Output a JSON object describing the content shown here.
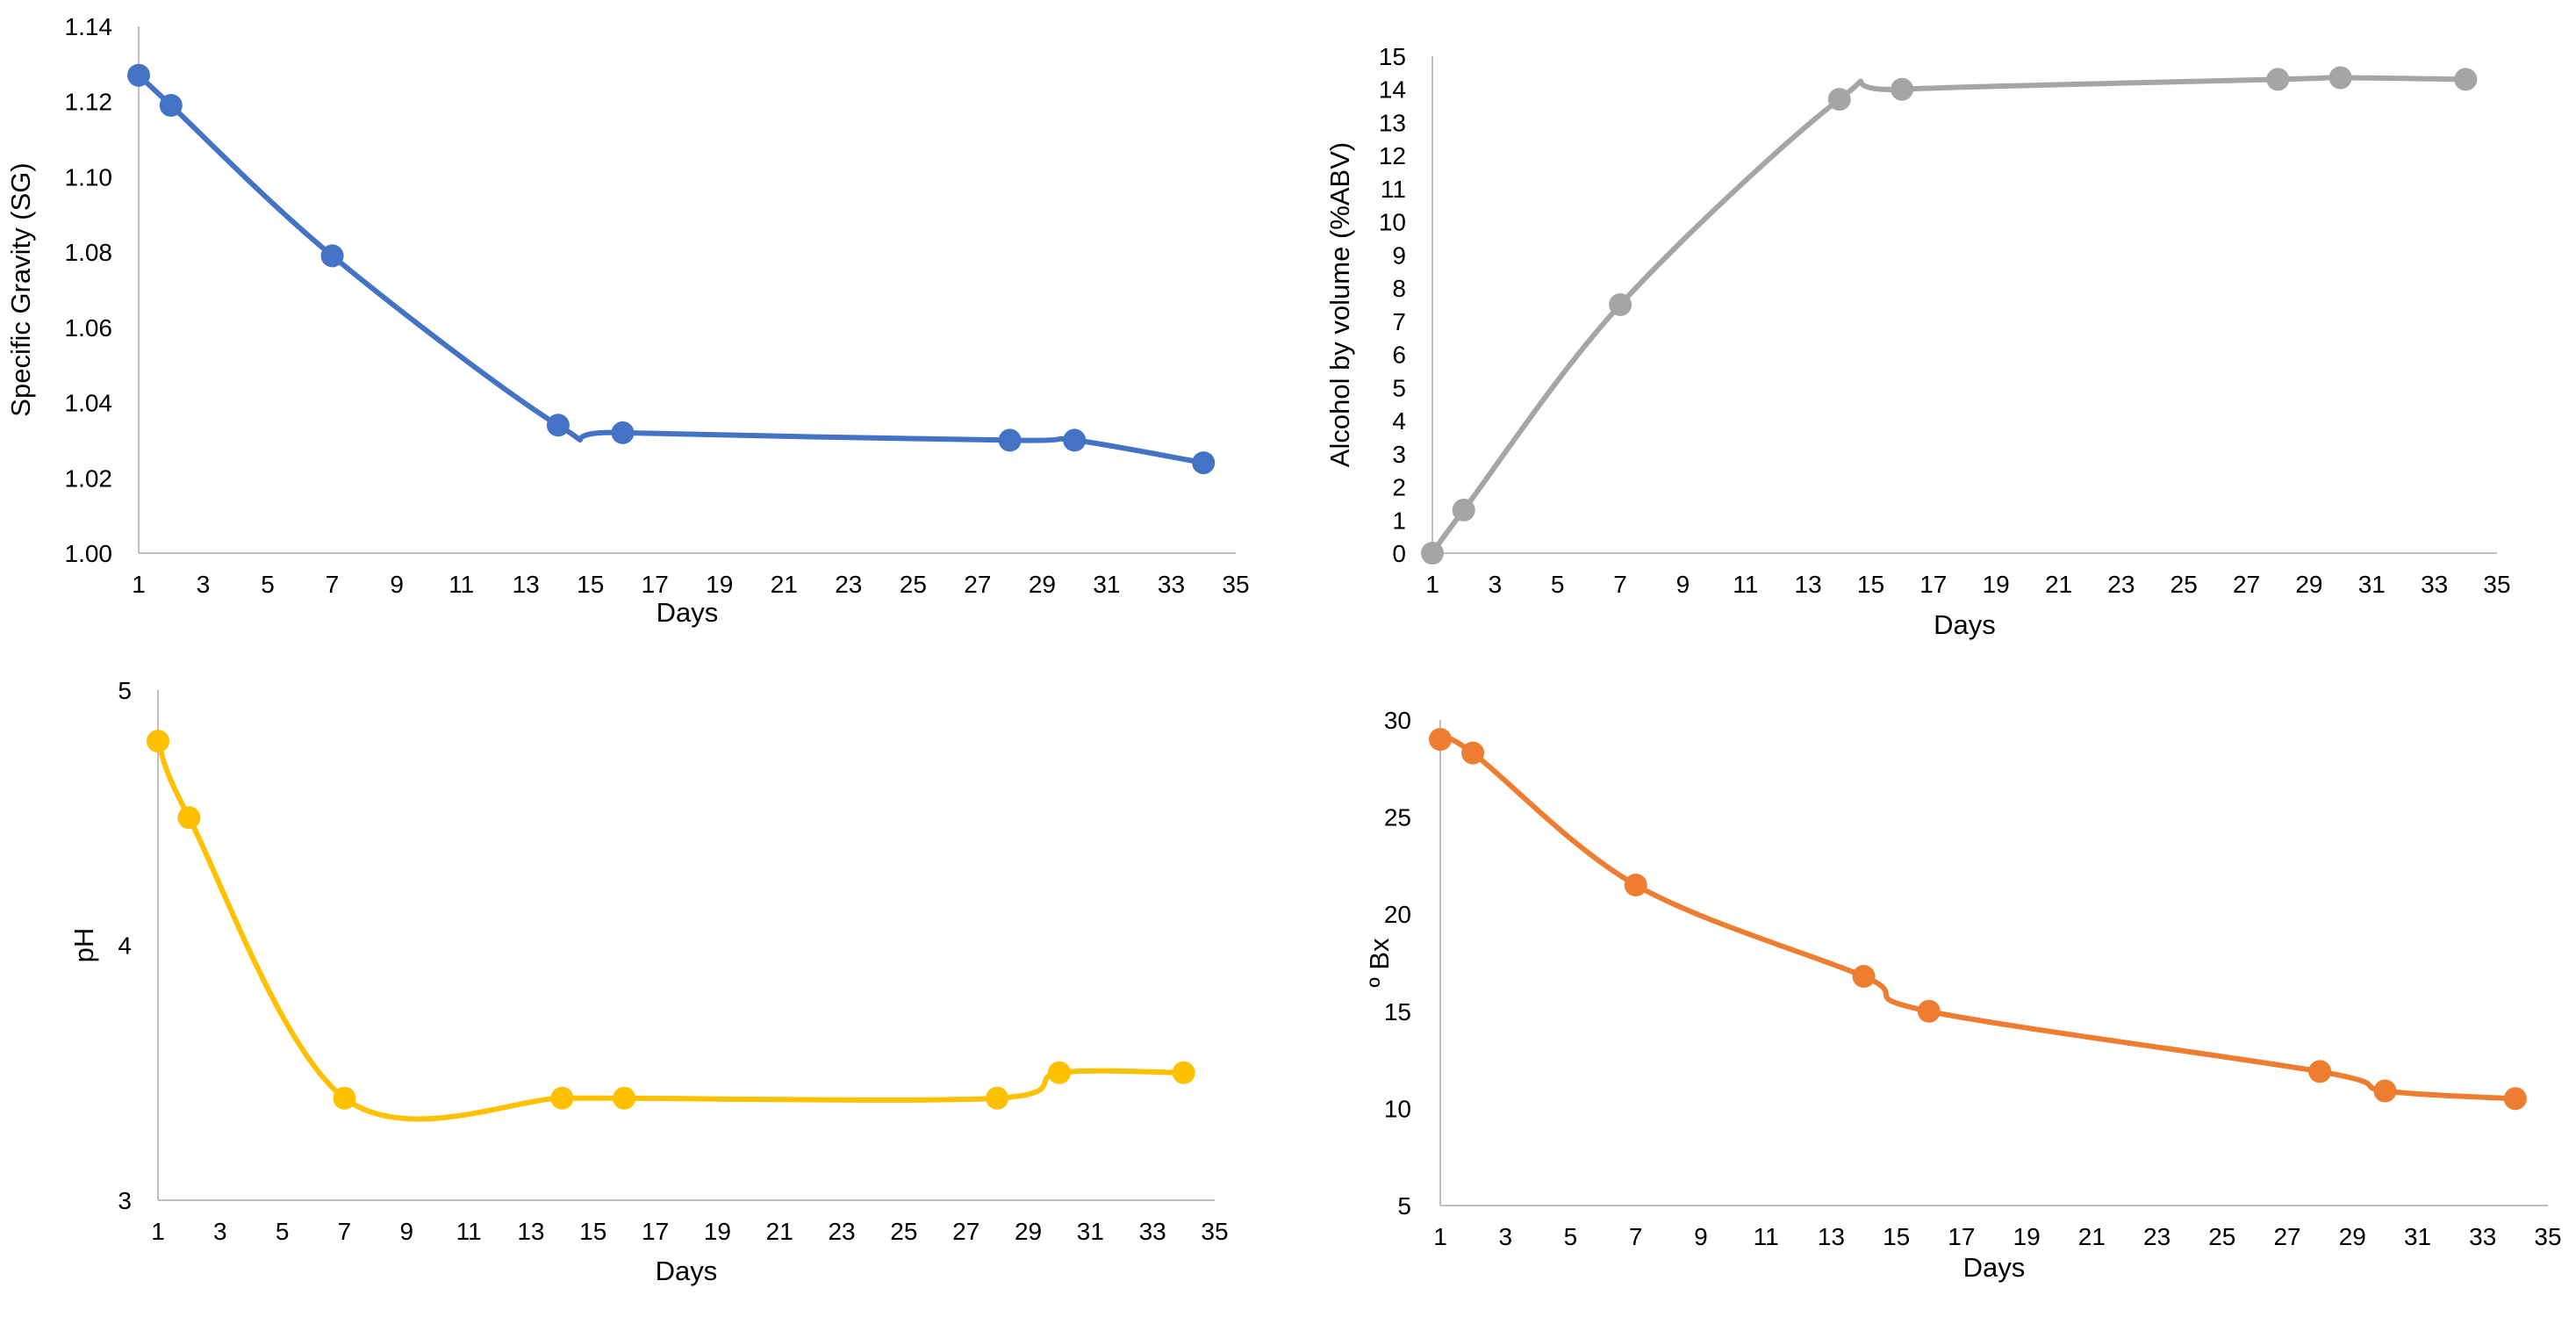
{
  "chart_data": [
    {
      "id": "sg",
      "type": "line",
      "title": "",
      "xlabel": "Days",
      "ylabel": "Specific Gravity (SG)",
      "color": "#4472C4",
      "xlim": [
        1,
        35
      ],
      "ylim": [
        1.0,
        1.14
      ],
      "xticks": [
        "1",
        "3",
        "5",
        "7",
        "9",
        "11",
        "13",
        "15",
        "17",
        "19",
        "21",
        "23",
        "25",
        "27",
        "29",
        "31",
        "33",
        "35"
      ],
      "yticks": [
        "1.00",
        "1.02",
        "1.04",
        "1.06",
        "1.08",
        "1.10",
        "1.12",
        "1.14"
      ],
      "x": [
        1,
        2,
        7,
        14,
        16,
        28,
        30,
        34
      ],
      "y": [
        1.127,
        1.119,
        1.079,
        1.034,
        1.032,
        1.03,
        1.03,
        1.024
      ]
    },
    {
      "id": "abv",
      "type": "line",
      "title": "",
      "xlabel": "Days",
      "ylabel": "Alcohol by volume (%ABV)",
      "color": "#A5A5A5",
      "xlim": [
        1,
        35
      ],
      "ylim": [
        0,
        15
      ],
      "xticks": [
        "1",
        "3",
        "5",
        "7",
        "9",
        "11",
        "13",
        "15",
        "17",
        "19",
        "21",
        "23",
        "25",
        "27",
        "29",
        "31",
        "33",
        "35"
      ],
      "yticks": [
        "0",
        "1",
        "2",
        "3",
        "4",
        "5",
        "6",
        "7",
        "8",
        "9",
        "10",
        "11",
        "12",
        "13",
        "14",
        "15"
      ],
      "x": [
        1,
        2,
        7,
        14,
        16,
        28,
        30,
        34
      ],
      "y": [
        0,
        1.3,
        7.5,
        13.7,
        14.0,
        14.3,
        14.35,
        14.3
      ]
    },
    {
      "id": "ph",
      "type": "line",
      "title": "",
      "xlabel": "Days",
      "ylabel": "pH",
      "color": "#FFC000",
      "xlim": [
        1,
        35
      ],
      "ylim": [
        3,
        5
      ],
      "xticks": [
        "1",
        "3",
        "5",
        "7",
        "9",
        "11",
        "13",
        "15",
        "17",
        "19",
        "21",
        "23",
        "25",
        "27",
        "29",
        "31",
        "33",
        "35"
      ],
      "yticks": [
        "3",
        "4",
        "5"
      ],
      "x": [
        1,
        2,
        7,
        14,
        16,
        28,
        30,
        34
      ],
      "y": [
        4.8,
        4.5,
        3.4,
        3.4,
        3.4,
        3.4,
        3.5,
        3.5
      ]
    },
    {
      "id": "brix",
      "type": "line",
      "title": "",
      "xlabel": "Days",
      "ylabel": "º Bx",
      "color": "#ED7D31",
      "xlim": [
        1,
        35
      ],
      "ylim": [
        5,
        30
      ],
      "xticks": [
        "1",
        "3",
        "5",
        "7",
        "9",
        "11",
        "13",
        "15",
        "17",
        "19",
        "21",
        "23",
        "25",
        "27",
        "29",
        "31",
        "33",
        "35"
      ],
      "yticks": [
        "5",
        "10",
        "15",
        "20",
        "25",
        "30"
      ],
      "x": [
        1,
        2,
        7,
        14,
        16,
        28,
        30,
        34
      ],
      "y": [
        29,
        28.3,
        21.5,
        16.8,
        15.0,
        11.9,
        10.9,
        10.5
      ]
    }
  ]
}
